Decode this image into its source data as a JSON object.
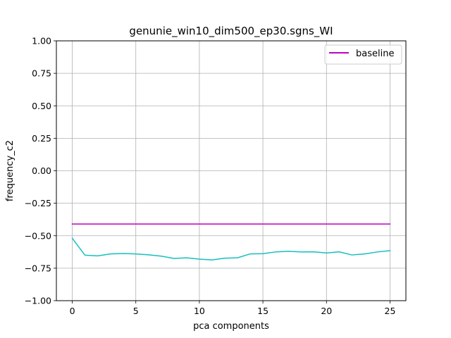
{
  "chart_data": {
    "type": "line",
    "title": "genunie_win10_dim500_ep30.sgns_WI",
    "xlabel": "pca components",
    "ylabel": "frequency_c2",
    "xlim": [
      -1.25,
      26.25
    ],
    "ylim": [
      -1.0,
      1.0
    ],
    "x_ticks": [
      0,
      5,
      10,
      15,
      20,
      25
    ],
    "y_ticks": [
      -1.0,
      -0.75,
      -0.5,
      -0.25,
      0.0,
      0.25,
      0.5,
      0.75,
      1.0
    ],
    "x_tick_labels": [
      "0",
      "5",
      "10",
      "15",
      "20",
      "25"
    ],
    "y_tick_labels": [
      "−1.00",
      "−0.75",
      "−0.50",
      "−0.25",
      "0.00",
      "0.25",
      "0.50",
      "0.75",
      "1.00"
    ],
    "grid": true,
    "legend_position": "top-right",
    "series": [
      {
        "name": "baseline",
        "color": "#bf00bf",
        "x": [
          0,
          25
        ],
        "values": [
          -0.41,
          -0.41
        ]
      },
      {
        "color": "#17bfbf",
        "x": [
          0,
          1,
          2,
          3,
          4,
          5,
          6,
          7,
          8,
          9,
          10,
          11,
          12,
          13,
          14,
          15,
          16,
          17,
          18,
          19,
          20,
          21,
          22,
          23,
          24,
          25
        ],
        "values": [
          -0.52,
          -0.65,
          -0.655,
          -0.64,
          -0.637,
          -0.64,
          -0.647,
          -0.657,
          -0.675,
          -0.67,
          -0.68,
          -0.686,
          -0.673,
          -0.67,
          -0.64,
          -0.638,
          -0.625,
          -0.62,
          -0.625,
          -0.624,
          -0.633,
          -0.624,
          -0.648,
          -0.64,
          -0.625,
          -0.615
        ]
      }
    ]
  }
}
